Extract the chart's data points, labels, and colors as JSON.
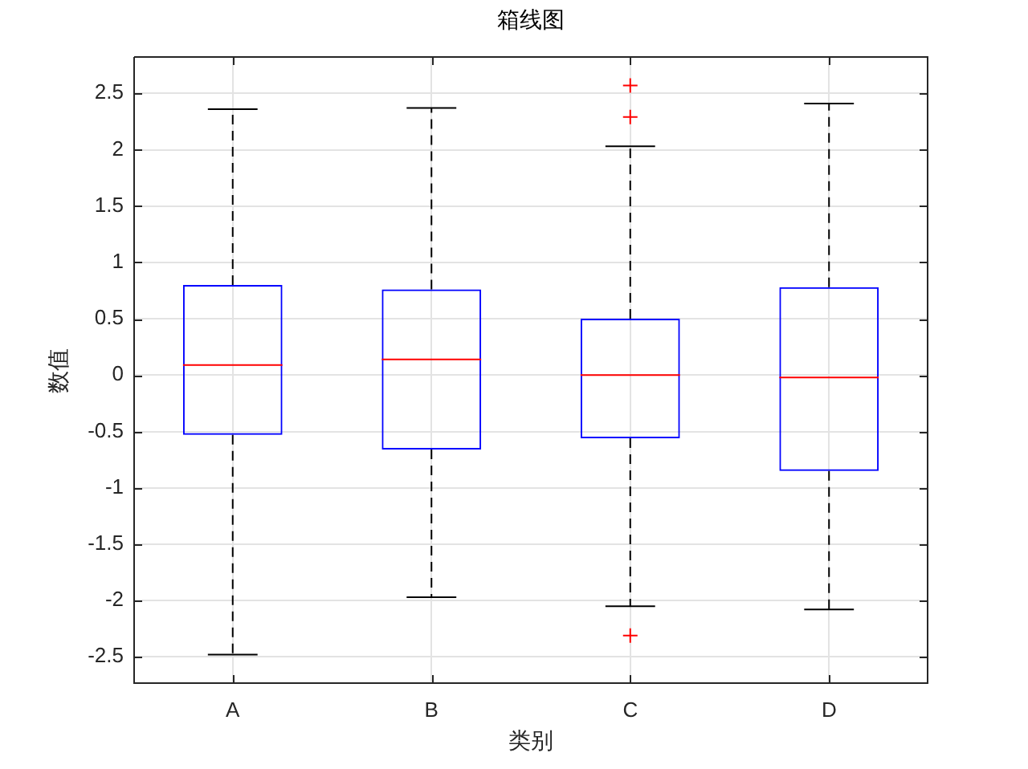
{
  "chart_data": {
    "type": "box",
    "title": "箱线图",
    "xlabel": "类别",
    "ylabel": "数值",
    "categories": [
      "A",
      "B",
      "C",
      "D"
    ],
    "series": [
      {
        "color": "#0000ff",
        "boxes": [
          {
            "low": -2.48,
            "q1": -0.53,
            "median": 0.09,
            "q3": 0.8,
            "high": 2.36
          },
          {
            "low": -1.97,
            "q1": -0.66,
            "median": 0.14,
            "q3": 0.76,
            "high": 2.37
          },
          {
            "low": -2.05,
            "q1": -0.56,
            "median": 0.0,
            "q3": 0.5,
            "high": 2.03,
            "outliers": [
              2.57,
              2.29,
              -2.31
            ]
          },
          {
            "low": -2.08,
            "q1": -0.85,
            "median": -0.02,
            "q3": 0.78,
            "high": 2.41
          }
        ]
      }
    ],
    "ylim": [
      -2.74,
      2.83
    ],
    "yticks": [
      -2.5,
      -2,
      -1.5,
      -1,
      -0.5,
      0,
      0.5,
      1,
      1.5,
      2,
      2.5
    ],
    "grid": true,
    "marker": "cross"
  }
}
